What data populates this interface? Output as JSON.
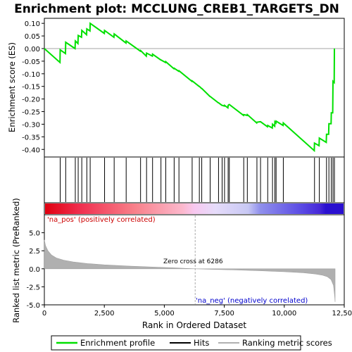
{
  "title": "Enrichment plot: MCCLUNG_CREB1_TARGETS_DN",
  "colors": {
    "enrichment_line": "#00e000",
    "hits": "#000000",
    "metric_fill": "#b0b0b0",
    "pos_label": "#cc0000",
    "neg_label": "#0000cc",
    "zero_line": "#aaaaaa"
  },
  "chart_data": [
    {
      "type": "line",
      "panel": "enrichment",
      "ylabel": "Enrichment score (ES)",
      "ylim": [
        -0.43,
        0.12
      ],
      "yticks": [
        0.1,
        0.05,
        0.0,
        -0.05,
        -0.1,
        -0.15,
        -0.2,
        -0.25,
        -0.3,
        -0.35,
        -0.4
      ],
      "ytick_labels": [
        "0.10",
        "0.05",
        "0.00",
        "-0.05",
        "-0.10",
        "-0.15",
        "-0.20",
        "-0.25",
        "-0.30",
        "-0.35",
        "-0.40"
      ],
      "xlim": [
        0,
        12500
      ],
      "series": [
        {
          "name": "Enrichment profile",
          "x": [
            0,
            650,
            660,
            880,
            890,
            1280,
            1290,
            1400,
            1410,
            1550,
            1560,
            1760,
            1770,
            1900,
            1910,
            2500,
            2510,
            2900,
            2910,
            3400,
            3410,
            4000,
            4010,
            4250,
            4260,
            4500,
            4510,
            4850,
            4860,
            5050,
            5060,
            5400,
            5410,
            5600,
            5610,
            6150,
            6160,
            6450,
            6460,
            6550,
            6560,
            6900,
            6910,
            7250,
            7260,
            7400,
            7410,
            7500,
            7510,
            7650,
            7660,
            7700,
            7710,
            8300,
            8310,
            8450,
            8460,
            8850,
            8860,
            9000,
            9010,
            9300,
            9310,
            9500,
            9510,
            9600,
            9610,
            9650,
            9660,
            9950,
            9960,
            11250,
            11260,
            11450,
            11460,
            11750,
            11760,
            11850,
            11860,
            11950,
            11960,
            12020,
            12030,
            12080,
            12090
          ],
          "y": [
            0.0,
            -0.055,
            -0.005,
            -0.02,
            0.025,
            0.0,
            0.03,
            0.02,
            0.052,
            0.045,
            0.072,
            0.055,
            0.078,
            0.07,
            0.1,
            0.06,
            0.072,
            0.045,
            0.058,
            0.022,
            0.03,
            -0.01,
            -0.008,
            -0.03,
            -0.018,
            -0.03,
            -0.022,
            -0.045,
            -0.045,
            -0.055,
            -0.052,
            -0.08,
            -0.078,
            -0.09,
            -0.088,
            -0.13,
            -0.128,
            -0.15,
            -0.15,
            -0.158,
            -0.158,
            -0.19,
            -0.19,
            -0.215,
            -0.215,
            -0.225,
            -0.225,
            -0.228,
            -0.225,
            -0.235,
            -0.225,
            -0.222,
            -0.222,
            -0.265,
            -0.262,
            -0.265,
            -0.262,
            -0.295,
            -0.292,
            -0.29,
            -0.29,
            -0.31,
            -0.305,
            -0.315,
            -0.3,
            -0.308,
            -0.29,
            -0.295,
            -0.288,
            -0.305,
            -0.295,
            -0.405,
            -0.375,
            -0.385,
            -0.355,
            -0.372,
            -0.34,
            -0.34,
            -0.298,
            -0.298,
            -0.255,
            -0.255,
            -0.13,
            -0.135,
            0.0
          ]
        }
      ]
    },
    {
      "type": "scatter",
      "panel": "hits",
      "series": [
        {
          "name": "Hits",
          "x": [
            660,
            890,
            1290,
            1410,
            1560,
            1770,
            1910,
            2510,
            2910,
            3410,
            4010,
            4260,
            4510,
            4860,
            5060,
            5410,
            5610,
            6160,
            6460,
            6560,
            6910,
            7260,
            7410,
            7510,
            7660,
            7710,
            8310,
            8460,
            8860,
            9010,
            9310,
            9510,
            9610,
            9660,
            9960,
            11260,
            11460,
            11760,
            11860,
            11960,
            12030,
            12090
          ]
        }
      ]
    },
    {
      "type": "area",
      "panel": "ranked_metric",
      "ylabel": "Ranked list metric (PreRanked)",
      "xlabel": "Rank in Ordered Dataset",
      "ylim": [
        -5.0,
        7.5
      ],
      "yticks": [
        5.0,
        2.5,
        0.0,
        -2.5,
        -5.0
      ],
      "ytick_labels": [
        "5.0",
        "2.5",
        "0.0",
        "-2.5",
        "-5.0"
      ],
      "xlim": [
        0,
        12500
      ],
      "xticks": [
        0,
        2500,
        5000,
        7500,
        10000,
        12500
      ],
      "xtick_labels": [
        "0",
        "2,500",
        "5,000",
        "7,500",
        "10,000",
        "12,500"
      ],
      "series": [
        {
          "name": "Ranking metric scores",
          "x": [
            0,
            50,
            150,
            300,
            500,
            800,
            1200,
            1800,
            2500,
            3500,
            4500,
            5500,
            6286,
            7000,
            8000,
            9000,
            10000,
            10800,
            11300,
            11600,
            11800,
            11950,
            12050,
            12100,
            12120
          ],
          "y": [
            4.0,
            3.2,
            2.5,
            1.9,
            1.5,
            1.2,
            0.95,
            0.72,
            0.55,
            0.38,
            0.24,
            0.12,
            0.0,
            -0.08,
            -0.17,
            -0.27,
            -0.4,
            -0.55,
            -0.72,
            -0.9,
            -1.1,
            -1.5,
            -2.3,
            -3.8,
            -4.6
          ]
        }
      ]
    }
  ],
  "annotations": {
    "na_pos": "'na_pos' (positively correlated)",
    "na_neg": "'na_neg' (negatively correlated)",
    "zero_cross": "Zero cross at 6286",
    "zero_cross_rank": 6286
  },
  "legend": {
    "items": [
      {
        "label": "Enrichment profile",
        "swatch": "line",
        "color": "#00e000"
      },
      {
        "label": "Hits",
        "swatch": "line",
        "color": "#000000"
      },
      {
        "label": "Ranking metric scores",
        "swatch": "line",
        "color": "#b0b0b0"
      }
    ]
  }
}
